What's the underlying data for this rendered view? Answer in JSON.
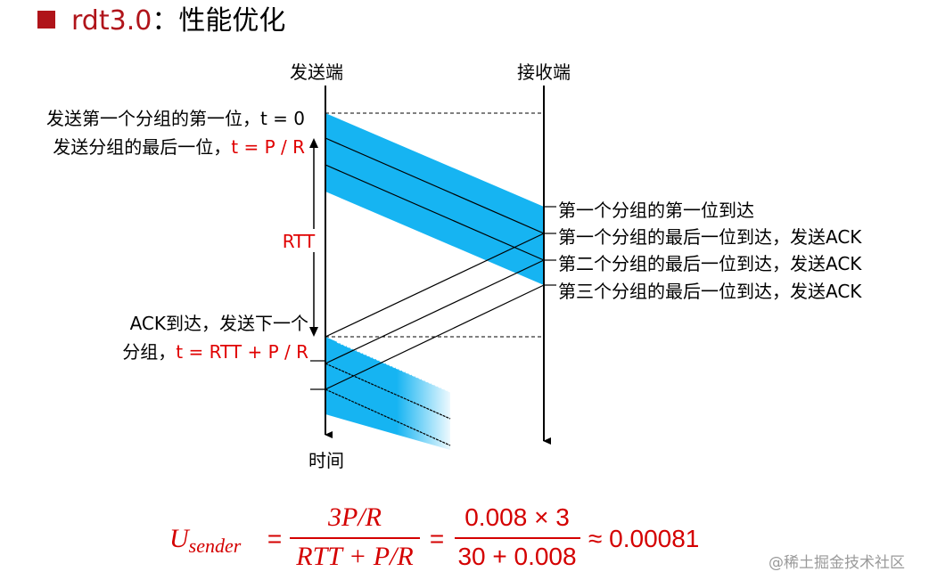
{
  "title": {
    "prefix": "rdt3.0",
    "suffix": "：性能优化"
  },
  "diagram": {
    "sender": "发送端",
    "receiver": "接收端",
    "rtt": "RTT",
    "time": "时间",
    "left_labels": [
      "发送第一个分组的第一位，t = 0",
      {
        "text": "发送分组的最后一位，",
        "time": "t = P / R"
      },
      "ACK到达，发送下一个",
      {
        "text": "分组，",
        "time": "t = RTT + P / R"
      }
    ],
    "right_labels": [
      "第一个分组的第一位到达",
      "第一个分组的最后一位到达，发送ACK",
      "第二个分组的最后一位到达，发送ACK",
      "第三个分组的最后一位到达，发送ACK"
    ]
  },
  "formula": {
    "symbol": "U",
    "subscript": "sender",
    "equals": "=",
    "fraction1": {
      "numerator": "3P/R",
      "denominator": "RTT + P/R"
    },
    "fraction2": {
      "numerator": "0.008 × 3",
      "denominator": "30 + 0.008"
    },
    "result": "≈ 0.00081"
  },
  "watermark": "@稀土掘金技术社区"
}
